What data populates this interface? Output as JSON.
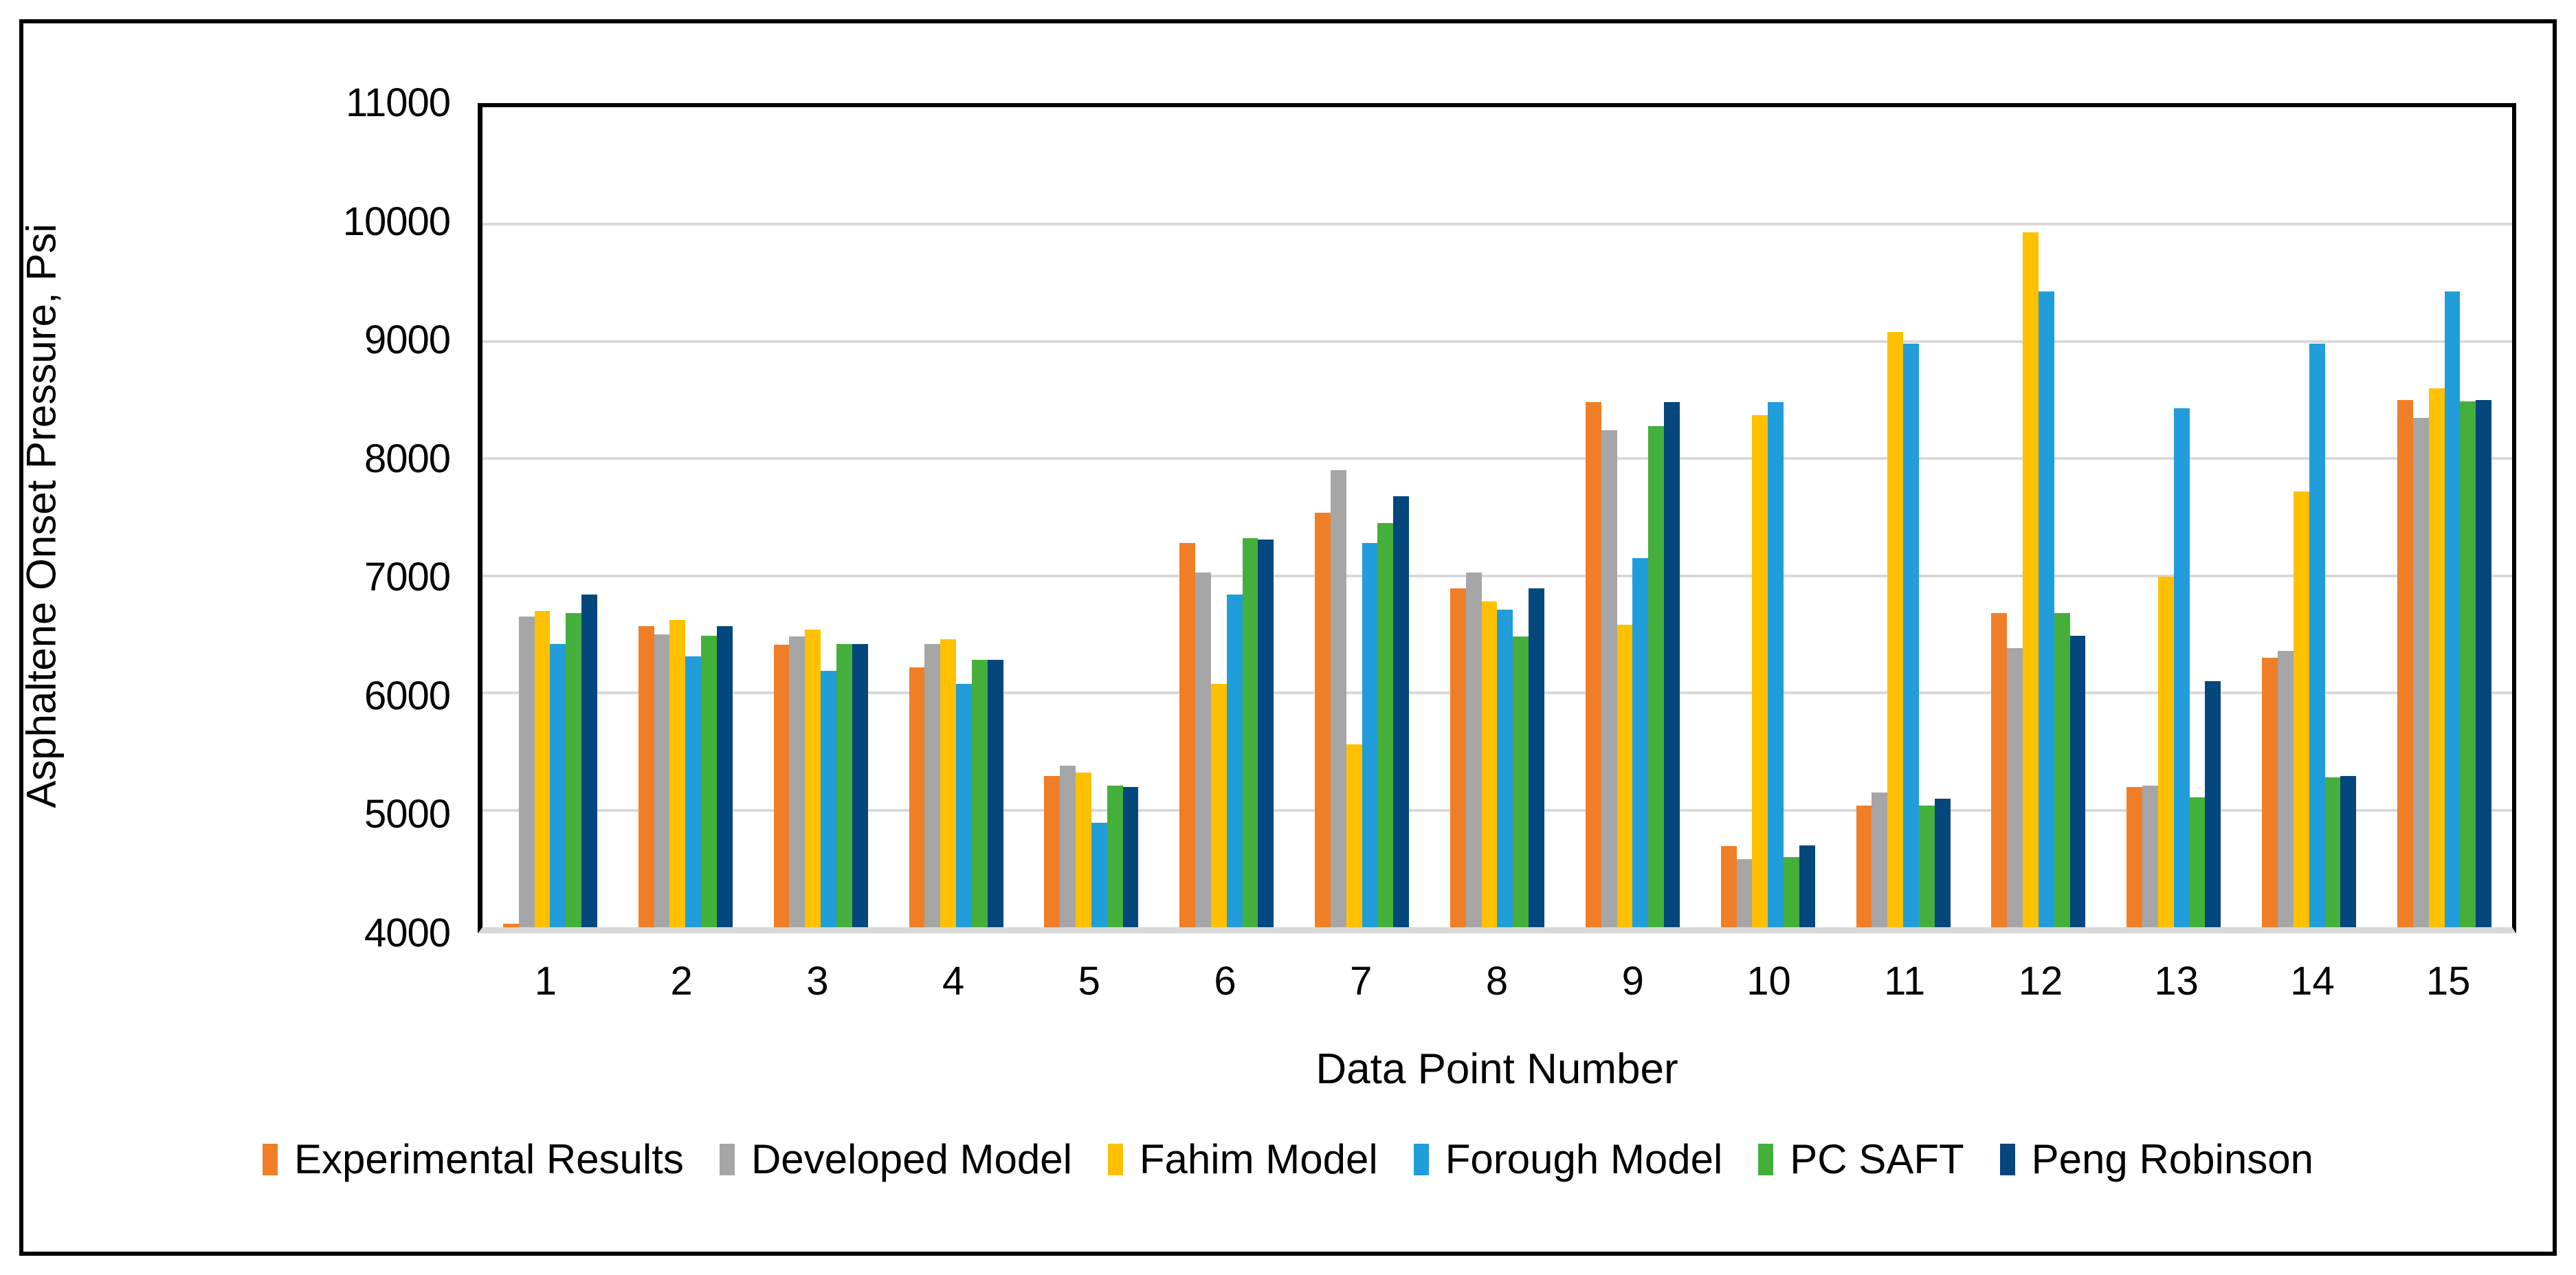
{
  "chart_data": {
    "type": "bar",
    "title": "",
    "xlabel": "Data Point Number",
    "ylabel": "Asphaltene Onset Pressure, Psi",
    "ylim": [
      4000,
      11000
    ],
    "ytick_step": 1000,
    "yticks": [
      4000,
      5000,
      6000,
      7000,
      8000,
      9000,
      10000,
      11000
    ],
    "categories": [
      "1",
      "2",
      "3",
      "4",
      "5",
      "6",
      "7",
      "8",
      "9",
      "10",
      "11",
      "12",
      "13",
      "14",
      "15"
    ],
    "series": [
      {
        "name": "Experimental Results",
        "color": "#F07E27",
        "values": [
          3990,
          6570,
          6410,
          6220,
          5290,
          7280,
          7540,
          6890,
          8480,
          4690,
          5040,
          6680,
          5200,
          6300,
          8500
        ]
      },
      {
        "name": "Developed Model",
        "color": "#A6A6A6",
        "values": [
          6650,
          6500,
          6480,
          6420,
          5380,
          7030,
          7900,
          7030,
          8240,
          4580,
          5150,
          6380,
          5210,
          6360,
          8350
        ]
      },
      {
        "name": "Fahim Model",
        "color": "#FFC000",
        "values": [
          6700,
          6620,
          6540,
          6460,
          5320,
          6080,
          5560,
          6780,
          6580,
          8370,
          9080,
          9930,
          6990,
          7720,
          8600
        ]
      },
      {
        "name": "Forough Model",
        "color": "#219DD9",
        "values": [
          6420,
          6310,
          6190,
          6080,
          4890,
          6840,
          7280,
          6710,
          7150,
          8480,
          8980,
          9430,
          8430,
          8980,
          9430
        ]
      },
      {
        "name": "PC SAFT",
        "color": "#44AF3B",
        "values": [
          6680,
          6490,
          6420,
          6280,
          5210,
          7320,
          7450,
          6480,
          8280,
          4600,
          5040,
          6680,
          5110,
          5280,
          8490
        ]
      },
      {
        "name": "Peng Robinson",
        "color": "#04477C",
        "values": [
          6840,
          6570,
          6420,
          6280,
          5200,
          7310,
          7680,
          6890,
          8480,
          4700,
          5100,
          6490,
          6100,
          5290,
          8500
        ]
      }
    ],
    "legend_position": "bottom",
    "grid": "horizontal",
    "gridline_color": "#D9D9D9",
    "plot_border_color": "#000000",
    "axis_line_color": "#D9D9D9"
  }
}
